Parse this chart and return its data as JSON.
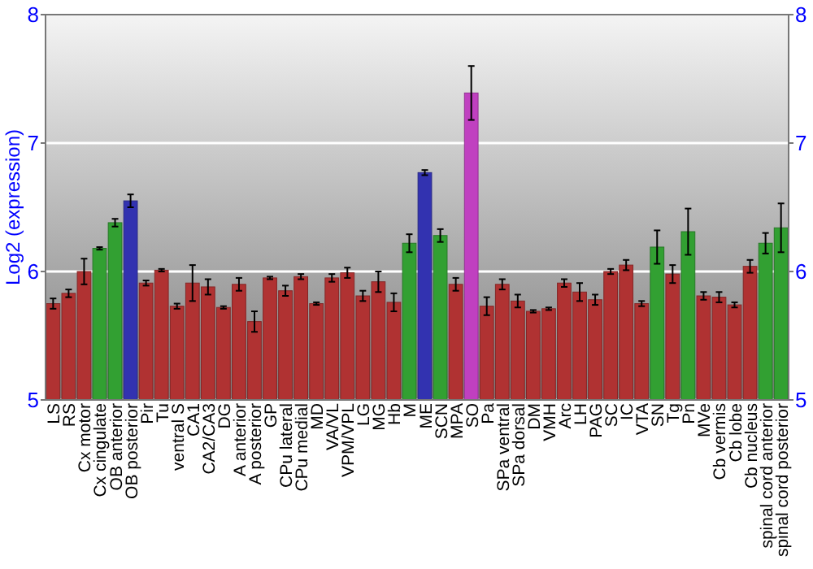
{
  "chart_data": {
    "type": "bar",
    "ylabel": "Log2 (expression)",
    "categories": [
      "LS",
      "RS",
      "Cx motor",
      "Cx cingulate",
      "OB anterior",
      "OB posterior",
      "Pir",
      "Tu",
      "ventral S",
      "CA1",
      "CA2/CA3",
      "DG",
      "A anterior",
      "A posterior",
      "GP",
      "CPu lateral",
      "CPu medial",
      "MD",
      "VA/VL",
      "VPM/VPL",
      "LG",
      "MG",
      "Hb",
      "M",
      "ME",
      "SCN",
      "MPA",
      "SO",
      "Pa",
      "SPa ventral",
      "SPa dorsal",
      "DM",
      "VMH",
      "Arc",
      "LH",
      "PAG",
      "SC",
      "IC",
      "VTA",
      "SN",
      "Tg",
      "Pn",
      "MVe",
      "Cb vermis",
      "Cb lobe",
      "Cb nucleus",
      "spinal cord anterior",
      "spinal cord posterior"
    ],
    "values": [
      5.75,
      5.83,
      6.0,
      6.18,
      6.38,
      6.55,
      5.91,
      6.01,
      5.73,
      5.91,
      5.88,
      5.72,
      5.9,
      5.61,
      5.95,
      5.85,
      5.96,
      5.75,
      5.95,
      5.99,
      5.81,
      5.92,
      5.76,
      6.22,
      6.77,
      6.28,
      5.9,
      7.39,
      5.73,
      5.9,
      5.77,
      5.69,
      5.71,
      5.91,
      5.84,
      5.78,
      6.0,
      6.05,
      5.75,
      6.19,
      5.98,
      6.31,
      5.81,
      5.8,
      5.74,
      6.04,
      6.22,
      6.34
    ],
    "errors": [
      0.04,
      0.03,
      0.1,
      0.01,
      0.03,
      0.05,
      0.02,
      0.01,
      0.02,
      0.14,
      0.06,
      0.01,
      0.05,
      0.08,
      0.01,
      0.04,
      0.02,
      0.01,
      0.03,
      0.04,
      0.04,
      0.08,
      0.07,
      0.07,
      0.02,
      0.05,
      0.05,
      0.21,
      0.07,
      0.04,
      0.05,
      0.01,
      0.01,
      0.03,
      0.07,
      0.04,
      0.02,
      0.04,
      0.02,
      0.13,
      0.07,
      0.18,
      0.03,
      0.04,
      0.02,
      0.05,
      0.08,
      0.19
    ],
    "colors": [
      "#b03232",
      "#b03232",
      "#b03232",
      "#32a032",
      "#32a032",
      "#3232b0",
      "#b03232",
      "#b03232",
      "#b03232",
      "#b03232",
      "#b03232",
      "#b03232",
      "#b03232",
      "#b03232",
      "#b03232",
      "#b03232",
      "#b03232",
      "#b03232",
      "#b03232",
      "#b03232",
      "#b03232",
      "#b03232",
      "#b03232",
      "#32a032",
      "#3232b0",
      "#32a032",
      "#b03232",
      "#c040c0",
      "#b03232",
      "#b03232",
      "#b03232",
      "#b03232",
      "#b03232",
      "#b03232",
      "#b03232",
      "#b03232",
      "#b03232",
      "#b03232",
      "#b03232",
      "#32a032",
      "#b03232",
      "#32a032",
      "#b03232",
      "#b03232",
      "#b03232",
      "#b03232",
      "#32a032",
      "#32a032"
    ],
    "ylim": [
      5,
      8
    ],
    "yticks": [
      5,
      6,
      7,
      8
    ],
    "y2lim": [
      5,
      8
    ],
    "y2ticks": [
      5,
      6,
      7,
      8
    ],
    "grid": "y"
  }
}
